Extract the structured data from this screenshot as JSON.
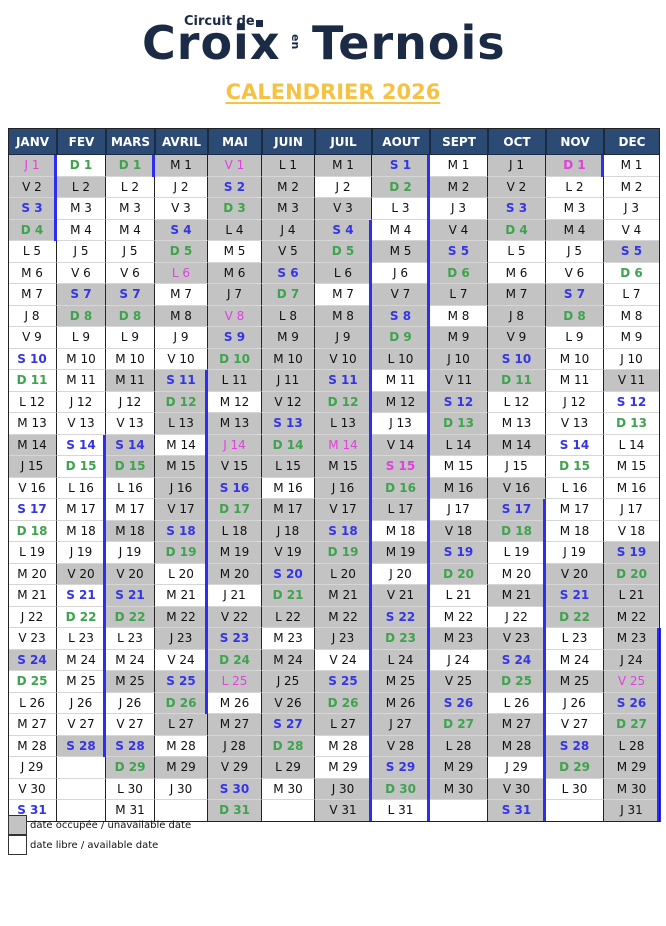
{
  "logo": {
    "top_text": "Circuit de",
    "main_left": "Croix",
    "middle": "en",
    "main_right": "Ternois"
  },
  "title": "CALENDRIER 2026",
  "colors": {
    "header_bg": "#2b4a74",
    "occupied": "#c3c3c3",
    "saturday": "#3535e8",
    "sunday": "#3fa34d",
    "holiday": "#e040e0",
    "block_bar": "#2e2ef0",
    "title": "#f5c244",
    "logo": "#1b2a45"
  },
  "months": [
    {
      "name": "JANV",
      "letters": "JVSDLMMJVSDLMMJVSDLMMJVSDLMMJVS",
      "occupied": "1111000000000110000000010000000",
      "holidays": [
        1
      ],
      "bars_after": [
        [
          1,
          4
        ]
      ]
    },
    {
      "name": "FEV",
      "letters": "DLMMJVSDLMMJVSDLMMJVSDLMMJVS",
      "occupied": "0100001100000000000100000001",
      "holidays": [],
      "bars_after": [
        [
          14,
          28
        ]
      ]
    },
    {
      "name": "MARS",
      "letters": "DLMMJVSDLMMJVSDLMMJVSDLMMJVSDLM",
      "occupied": "1000001100100110010111001001100",
      "holidays": [],
      "bars_after": [
        [
          1,
          1
        ]
      ]
    },
    {
      "name": "AVRIL",
      "letters": "MJVSDLMMJVSDLMMJVSDLMMJVSDLMMJ",
      "occupied": "100111010011101111100110111010",
      "holidays": [
        6
      ],
      "bars_after": [
        [
          11,
          26
        ]
      ]
    },
    {
      "name": "MAI",
      "letters": "VSDLMMJVSDLMMJVSDLMMJVSDLMMJVSD",
      "occupied": "1111011111101111111101111011111",
      "holidays": [
        1,
        8,
        14,
        25
      ],
      "bars_after": []
    },
    {
      "name": "JUIN",
      "letters": "LMMJVSDLMMJVSDLMMJVSDLMMJVSDLM",
      "occupied": "111111111111111011111101111110",
      "holidays": [],
      "bars_after": []
    },
    {
      "name": "JUIL",
      "letters": "MJVSDLMMJVSDLMMJVSDLMMJVSDLMMJV",
      "occupied": "1011110111111111111111101110011",
      "holidays": [
        14
      ],
      "bars_after": [
        [
          4,
          31
        ]
      ]
    },
    {
      "name": "AOUT",
      "letters": "SDLMMJVSDLMMJVSDLMMJVSDLMMJVSDL",
      "occupied": "1100101111010111101011111111110",
      "holidays": [
        15
      ],
      "bars_after": [
        [
          1,
          31
        ]
      ]
    },
    {
      "name": "SEPT",
      "letters": "MMJVSDLMMJVSDLMMJVSDLMMJVSDLMM",
      "occupied": "010111101111110101110010111111",
      "holidays": [],
      "bars_after": []
    },
    {
      "name": "OCT",
      "letters": "JVSDLMMJVSDLMMJVSDLMMJVSDLMMJVS",
      "occupied": "1111001111100101110010111011011",
      "holidays": [],
      "bars_after": [
        [
          17,
          31
        ]
      ]
    },
    {
      "name": "NOV",
      "letters": "DLMMJVSDLMMJVSDLMMJVSDLMMJVSDL",
      "occupied": "100100110000000000011100100110",
      "holidays": [
        1
      ],
      "bars_after": [
        [
          1,
          1
        ]
      ]
    },
    {
      "name": "DEC",
      "letters": "MMJVSDLMMJVSDLMMJVSDLMMJVSDLMMJ",
      "occupied": "0000100000100000001111111111111",
      "holidays": [
        25
      ],
      "bars_after": [
        [
          23,
          31
        ]
      ]
    }
  ],
  "legend": {
    "occupied_label": "date occupée / unavailable date",
    "free_label": "date libre / available date"
  }
}
